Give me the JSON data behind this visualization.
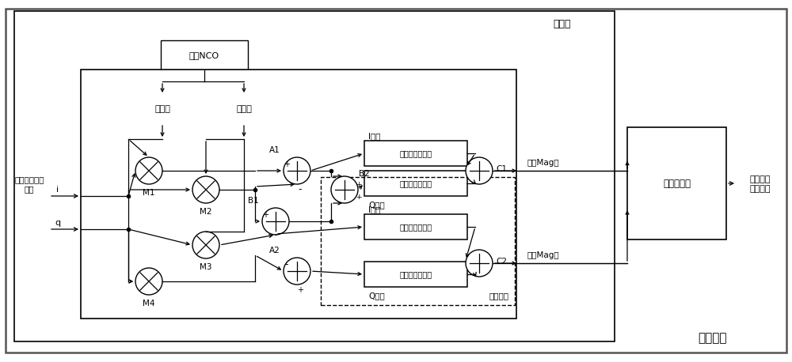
{
  "title_outer": "扫频单元",
  "title_inner": "扫频器",
  "label_nco": "本地NCO",
  "label_cos": "余弦表",
  "label_sin": "正弦表",
  "label_int1": "第一相干积分器",
  "label_int2": "第二相干积分器",
  "label_int3": "第三相干积分器",
  "label_int4": "第四相干积分器",
  "label_freq": "频率估计器",
  "label_input": "含噪连续波复\n信号",
  "label_output": "连续波信\n号的频率",
  "label_mag1": "第一Mag值",
  "label_mag2": "第二Mag值",
  "label_accel": "加速模块",
  "label_i": "i",
  "label_q": "q",
  "label_m1": "M1",
  "label_m2": "M2",
  "label_m3": "M3",
  "label_m4": "M4",
  "label_a1": "A1",
  "label_a2": "A2",
  "label_b1": "B1",
  "label_b2": "B2",
  "label_c1": "C1",
  "label_c2": "C2",
  "label_i_branch1": "I支路",
  "label_q_branch1": "Q支路",
  "label_i_branch2": "I支路",
  "label_q_branch2": "Q支路"
}
